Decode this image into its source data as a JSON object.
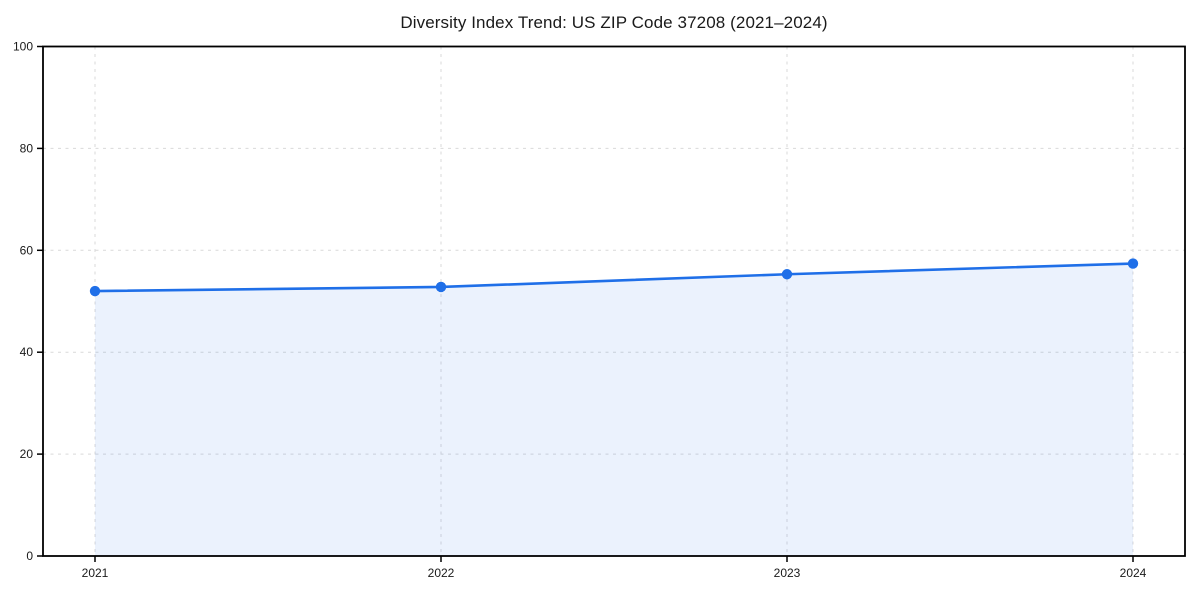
{
  "chart_data": {
    "type": "line",
    "title": "Diversity Index Trend: US ZIP Code 37208 (2021–2024)",
    "x": [
      2021,
      2022,
      2023,
      2024
    ],
    "xtick_labels": [
      "2021",
      "2022",
      "2023",
      "2024"
    ],
    "series": [
      {
        "name": "Diversity Index",
        "values": [
          52.0,
          52.8,
          55.3,
          57.4
        ]
      }
    ],
    "xlabel": "",
    "ylabel": "",
    "ylim": [
      0,
      100
    ],
    "yticks": [
      0,
      20,
      40,
      60,
      80,
      100
    ],
    "ytick_labels": [
      "0",
      "20",
      "40",
      "60",
      "80",
      "100"
    ],
    "grid": true,
    "grid_style": "dashed",
    "area_fill": true,
    "legend_position": "none",
    "marker": "circle",
    "colors": {
      "line": "#1f6fe8",
      "marker": "#1f6fe8",
      "area_fill": "#1f6fe8",
      "area_fill_opacity": 0.09,
      "grid": "#d9d9d9",
      "axis": "#000000",
      "text": "#1a1a1a",
      "background": "#ffffff"
    }
  }
}
